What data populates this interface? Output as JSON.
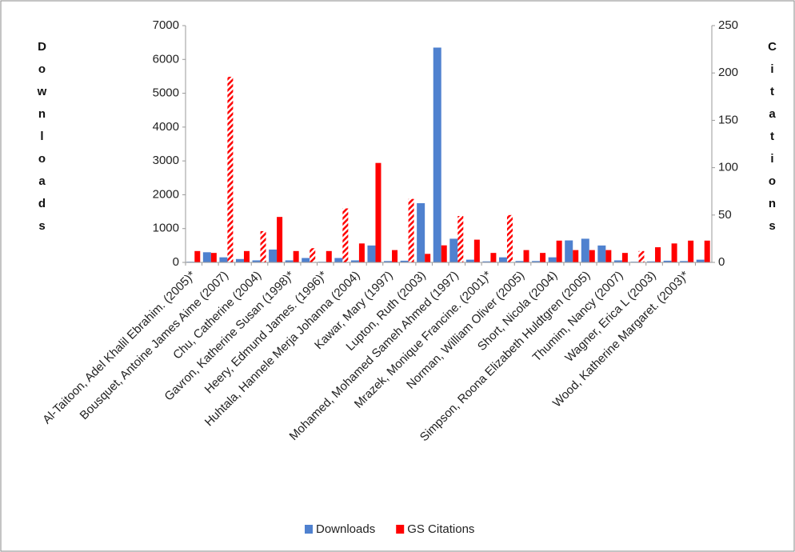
{
  "chart_data": {
    "type": "bar",
    "y_label": "Downloads",
    "y2_label": "Citations",
    "categories": [
      "Al-Taitoon, Adel Khalil Ebrahim. (2005)*",
      null,
      "Bousquet, Antoine James Aime (2007)",
      null,
      "Chu, Catherine (2004)",
      null,
      "Gavron, Katherine Susan (1998)*",
      null,
      "Heery, Edmund James. (1996)*",
      null,
      "Huhtala, Hannele Merja Johanna (2004)",
      null,
      "Kawar, Mary (1997)",
      null,
      "Lupton, Ruth (2003)",
      null,
      "Mohamed, Mohamed Sameh Ahmed (1997)",
      null,
      "Mrazek, Monique Francine. (2001)*",
      null,
      "Norman, William Oliver (2005)",
      null,
      "Short, Nicola (2004)",
      null,
      "Simpson, Roona Elizabeth Huldtgren (2005)",
      null,
      "Thumim, Nancy (2007)",
      null,
      "Wagner, Erica L (2003)",
      null,
      "Wood, Katherine Margaret. (2003)*",
      null
    ],
    "series": [
      {
        "name": "Downloads",
        "color": "#4f81cf",
        "axis": "y",
        "values": [
          20,
          300,
          150,
          100,
          60,
          380,
          60,
          130,
          20,
          130,
          60,
          500,
          40,
          50,
          1750,
          6350,
          700,
          80,
          30,
          150,
          40,
          40,
          150,
          650,
          700,
          500,
          60,
          20,
          30,
          50,
          40,
          80
        ]
      },
      {
        "name": "GS Citations",
        "color": "#ff0000",
        "axis": "y2",
        "values": [
          12,
          10,
          196,
          12,
          33,
          48,
          12,
          15,
          12,
          57,
          20,
          105,
          13,
          67,
          9,
          18,
          49,
          24,
          10,
          50,
          13,
          10,
          23,
          13,
          13,
          13,
          10,
          12,
          16,
          20,
          23,
          23
        ],
        "hatched": [
          false,
          false,
          true,
          false,
          true,
          false,
          false,
          true,
          false,
          true,
          false,
          false,
          false,
          true,
          false,
          false,
          true,
          false,
          false,
          true,
          false,
          false,
          false,
          false,
          false,
          false,
          false,
          true,
          false,
          false,
          false,
          false
        ]
      }
    ],
    "ylim": [
      0,
      7000
    ],
    "yticks": [
      0,
      1000,
      2000,
      3000,
      4000,
      5000,
      6000,
      7000
    ],
    "y2lim": [
      0,
      250
    ],
    "y2ticks": [
      0,
      50,
      100,
      150,
      200,
      250
    ],
    "grid": false,
    "legend": "bottom"
  }
}
